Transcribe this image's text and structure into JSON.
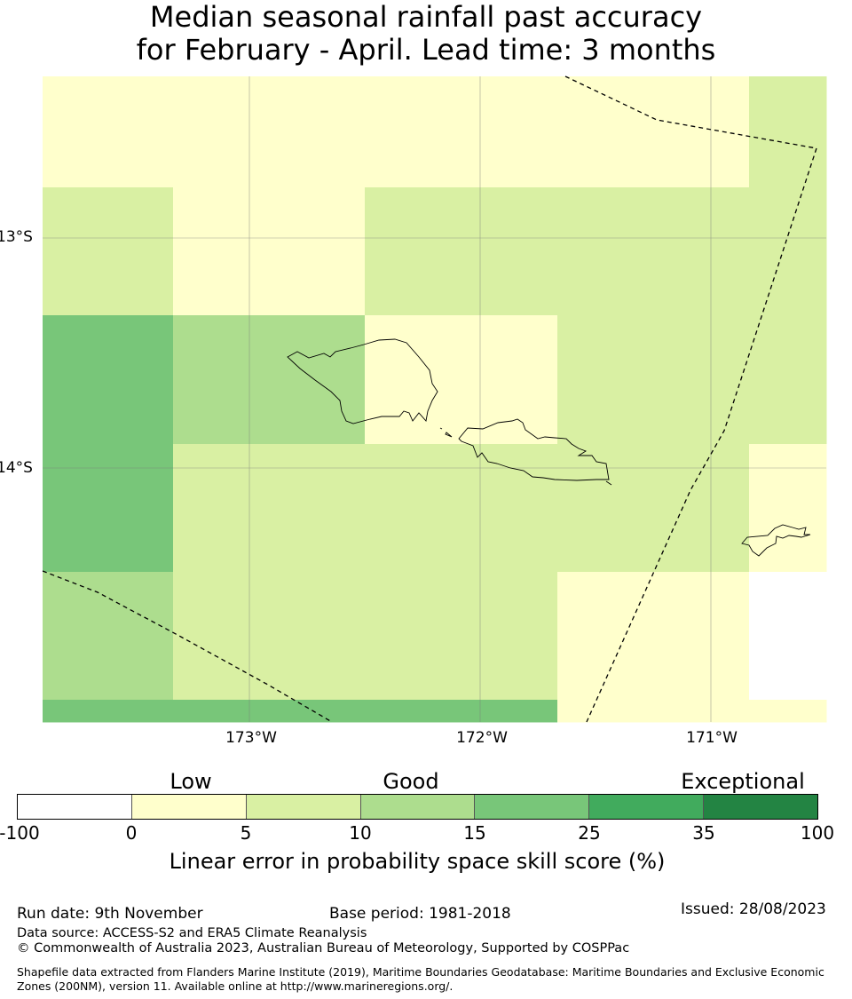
{
  "title": {
    "line1": "Median seasonal rainfall past accuracy",
    "line2": "for February - April. Lead time: 3 months"
  },
  "map": {
    "lat_labels": [
      "13°S",
      "14°S"
    ],
    "lon_labels": [
      "173°W",
      "172°W",
      "171°W"
    ],
    "grid_colors_key": [
      "white",
      "c0",
      "c5",
      "c10",
      "c15"
    ],
    "grid": [
      [
        "c0",
        "c0",
        "c0",
        "c0",
        "c5"
      ],
      [
        "c5",
        "c0",
        "c5",
        "c5",
        "c5"
      ],
      [
        "c15",
        "c10",
        "c0",
        "c5",
        "c5"
      ],
      [
        "c15",
        "c5",
        "c5",
        "c5",
        "c0"
      ],
      [
        "c10",
        "c5",
        "c5",
        "c0",
        "white"
      ],
      [
        "c15",
        "c15",
        "c15",
        "c0",
        "c0"
      ]
    ]
  },
  "colorbar": {
    "categories": [
      "Low",
      "Good",
      "Exceptional"
    ],
    "ticks": [
      "-100",
      "0",
      "5",
      "10",
      "15",
      "25",
      "35",
      "100"
    ],
    "colors": [
      "#ffffff",
      "#ffffcc",
      "#d9f0a3",
      "#addd8e",
      "#78c679",
      "#41ab5d",
      "#238443"
    ],
    "label": "Linear error in probability space skill score (%)"
  },
  "footer": {
    "run_date": "Run date: 9th November",
    "base_period": "Base period: 1981-2018",
    "issued": "Issued: 28/08/2023",
    "data_source": "Data source: ACCESS-S2 and ERA5 Climate Reanalysis",
    "copyright": "© Commonwealth of Australia 2023, Australian Bureau of Meteorology, Supported by COSPPac",
    "shapefile": "Shapefile data extracted from Flanders Marine Institute (2019), Maritime Boundaries Geodatabase: Maritime Boundaries and Exclusive Economic Zones (200NM), version 11. Available online at http://www.marineregions.org/."
  }
}
